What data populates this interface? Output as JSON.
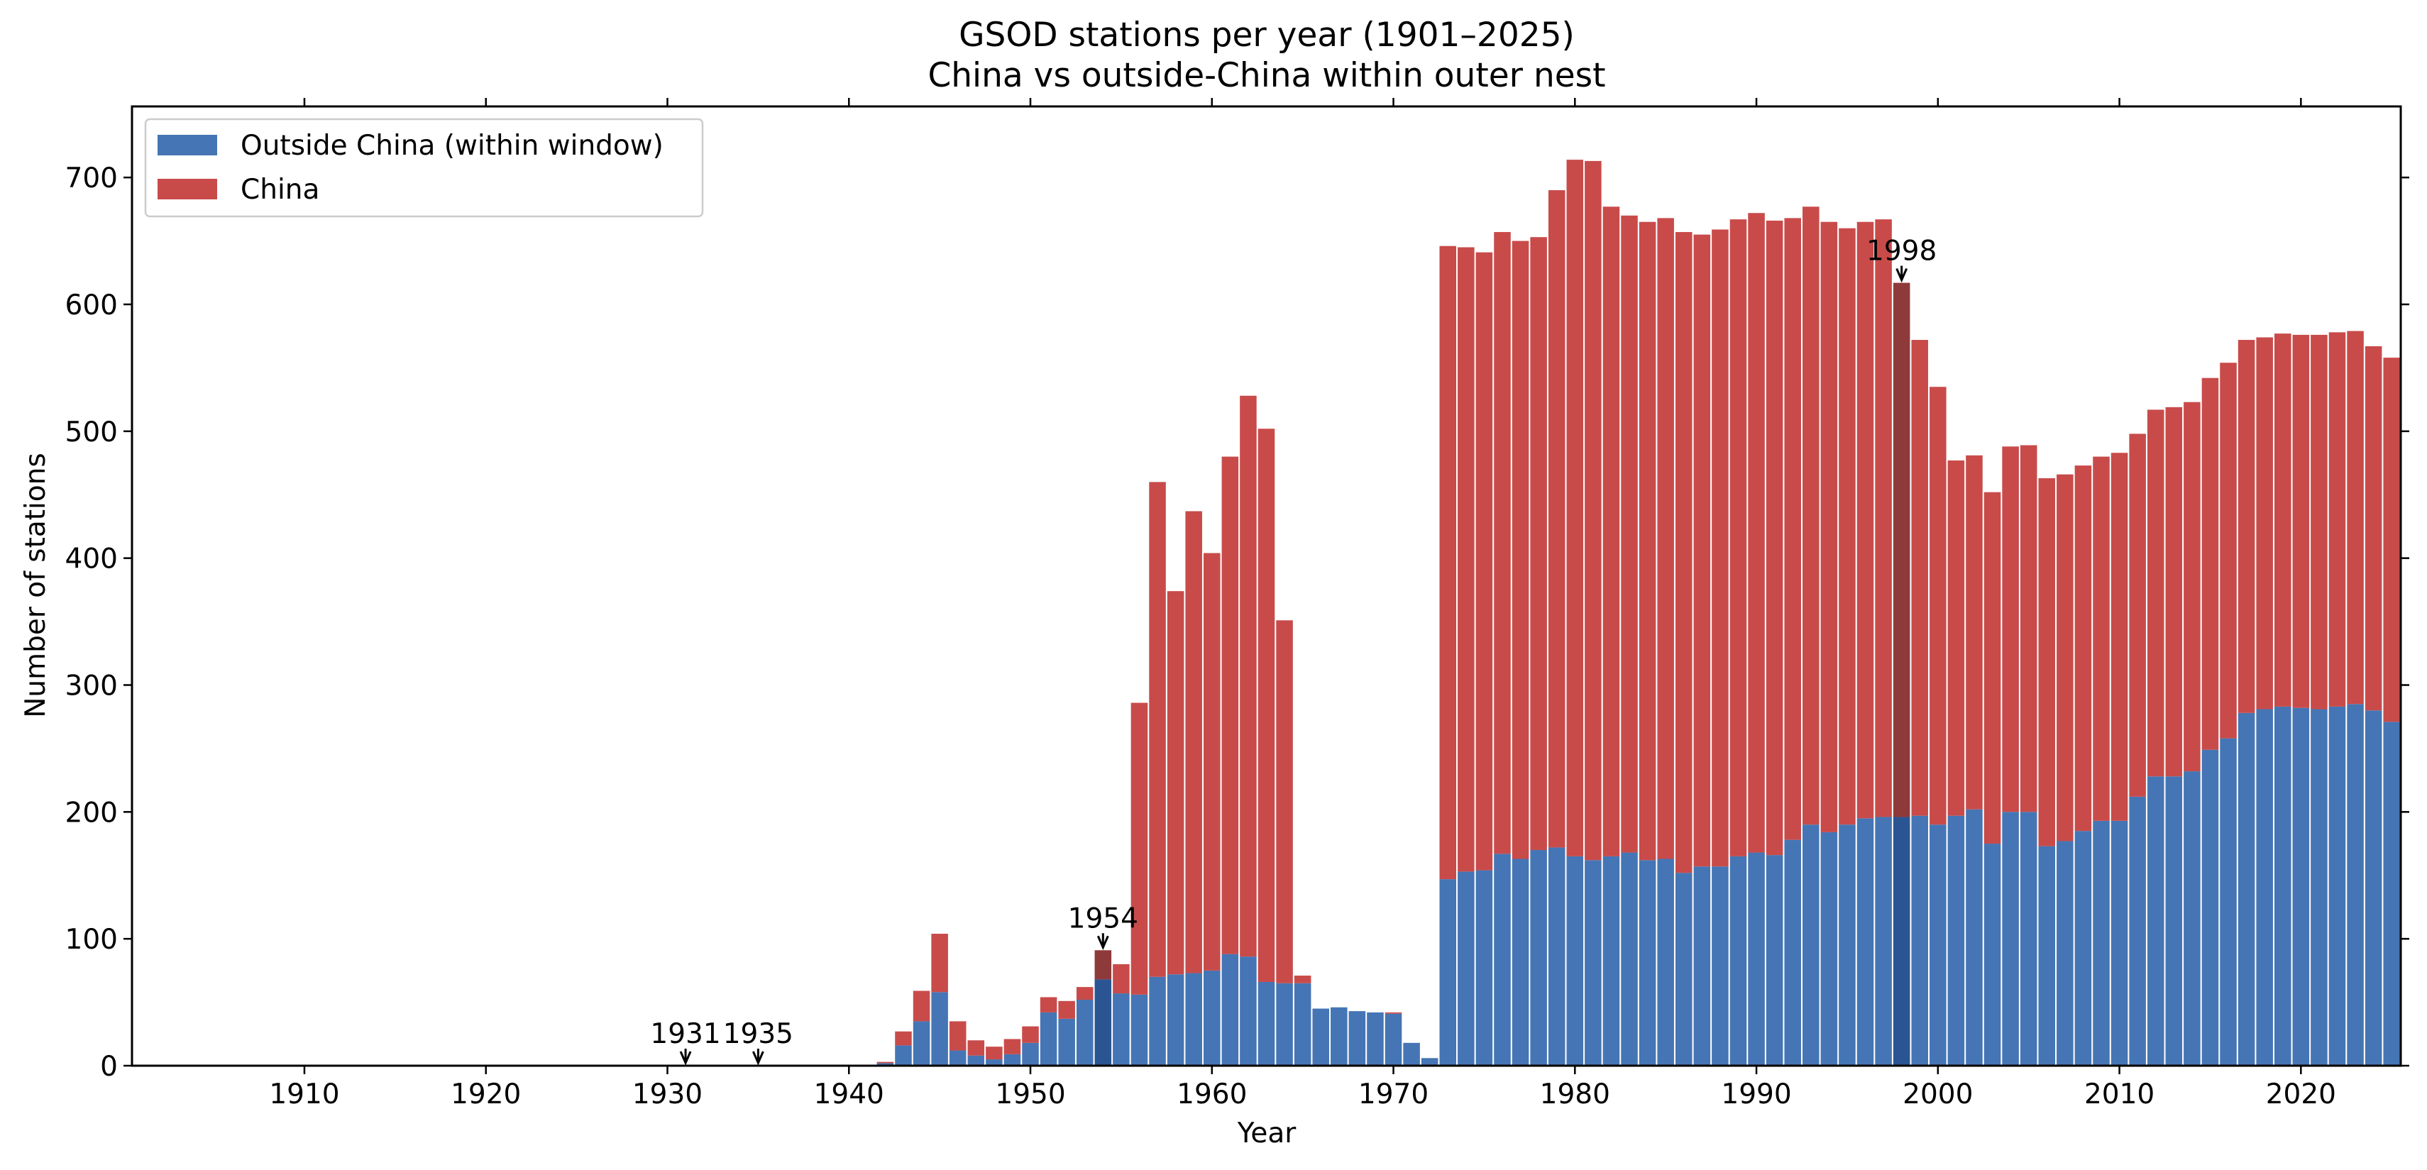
{
  "chart_data": {
    "type": "bar",
    "stacked": true,
    "title": "GSOD stations per year (1901–2025)",
    "subtitle": "China vs outside-China within outer nest",
    "xlabel": "Year",
    "ylabel": "Number of stations",
    "xlim": [
      1900.5,
      2025.5
    ],
    "ylim": [
      0,
      756
    ],
    "x_ticks": [
      1910,
      1920,
      1930,
      1940,
      1950,
      1960,
      1970,
      1980,
      1990,
      2000,
      2010,
      2020
    ],
    "y_ticks": [
      0,
      100,
      200,
      300,
      400,
      500,
      600,
      700
    ],
    "grid": false,
    "legend_position": "top-left",
    "series": [
      {
        "name": "Outside China (within window)",
        "color": "#4575b4",
        "highlight_color": "#2a5592"
      },
      {
        "name": "China",
        "color": "#c84b4a",
        "highlight_color": "#8f3a3a"
      }
    ],
    "x": [
      1942,
      1943,
      1944,
      1945,
      1946,
      1947,
      1948,
      1949,
      1950,
      1951,
      1952,
      1953,
      1954,
      1955,
      1956,
      1957,
      1958,
      1959,
      1960,
      1961,
      1962,
      1963,
      1964,
      1965,
      1966,
      1967,
      1968,
      1969,
      1970,
      1971,
      1972,
      1973,
      1974,
      1975,
      1976,
      1977,
      1978,
      1979,
      1980,
      1981,
      1982,
      1983,
      1984,
      1985,
      1986,
      1987,
      1988,
      1989,
      1990,
      1991,
      1992,
      1993,
      1994,
      1995,
      1996,
      1997,
      1998,
      1999,
      2000,
      2001,
      2002,
      2003,
      2004,
      2005,
      2006,
      2007,
      2008,
      2009,
      2010,
      2011,
      2012,
      2013,
      2014,
      2015,
      2016,
      2017,
      2018,
      2019,
      2020,
      2021,
      2022,
      2023,
      2024,
      2025
    ],
    "outside_china": [
      2,
      16,
      35,
      58,
      12,
      8,
      5,
      9,
      18,
      42,
      37,
      52,
      68,
      57,
      56,
      70,
      72,
      73,
      75,
      88,
      86,
      66,
      65,
      65,
      45,
      46,
      43,
      42,
      41,
      18,
      6,
      147,
      153,
      154,
      167,
      163,
      170,
      172,
      165,
      162,
      165,
      168,
      162,
      163,
      152,
      157,
      157,
      165,
      168,
      166,
      178,
      190,
      184,
      190,
      195,
      196,
      196,
      197,
      190,
      197,
      202,
      175,
      200,
      200,
      173,
      177,
      185,
      193,
      193,
      212,
      228,
      228,
      232,
      249,
      258,
      278,
      281,
      283,
      282,
      281,
      283,
      285,
      280,
      271
    ],
    "china": [
      1,
      11,
      24,
      46,
      23,
      12,
      10,
      12,
      13,
      12,
      14,
      10,
      23,
      23,
      230,
      390,
      302,
      364,
      329,
      392,
      442,
      436,
      286,
      6,
      0,
      0,
      0,
      0,
      1,
      0,
      0,
      499,
      492,
      487,
      490,
      487,
      483,
      518,
      549,
      551,
      512,
      502,
      503,
      505,
      505,
      498,
      502,
      502,
      504,
      500,
      490,
      487,
      481,
      470,
      470,
      471,
      421,
      375,
      345,
      280,
      279,
      277,
      288,
      289,
      290,
      289,
      288,
      287,
      290,
      286,
      289,
      291,
      291,
      293,
      296,
      294,
      293,
      294,
      294,
      295,
      295,
      294,
      287,
      287
    ],
    "highlighted_years": [
      1954,
      1998
    ],
    "annotations": [
      {
        "year": 1931,
        "label": "1931",
        "value": 0
      },
      {
        "year": 1935,
        "label": "1935",
        "value": 0
      },
      {
        "year": 1954,
        "label": "1954",
        "value": 91
      },
      {
        "year": 1998,
        "label": "1998",
        "value": 617
      }
    ]
  }
}
